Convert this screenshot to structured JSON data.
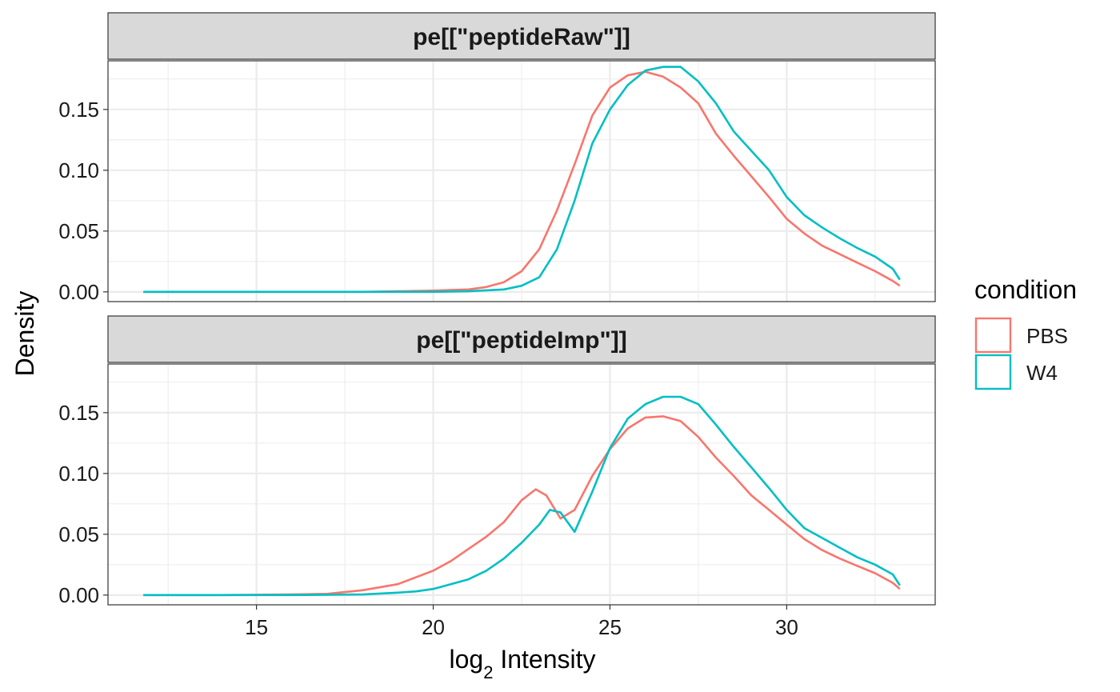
{
  "chart_data": {
    "type": "line",
    "subtype": "density",
    "xlabel_main": "log",
    "xlabel_sub": "2",
    "xlabel_rest": " Intensity",
    "ylabel": "Density",
    "xlim": [
      10.8,
      34.2
    ],
    "x_ticks": [
      15,
      20,
      25,
      30
    ],
    "x_tick_labels": [
      "15",
      "20",
      "25",
      "30"
    ],
    "legend": {
      "title": "condition",
      "position": "right",
      "entries": [
        {
          "name": "PBS",
          "color": "#F8766D"
        },
        {
          "name": "W4",
          "color": "#00BFC4"
        }
      ]
    },
    "grid": true,
    "panels": [
      {
        "title": "pe[[\"peptideRaw\"]]",
        "ylim": [
          -0.008,
          0.19
        ],
        "y_ticks": [
          0.0,
          0.05,
          0.1,
          0.15
        ],
        "y_tick_labels": [
          "0.00",
          "0.05",
          "0.10",
          "0.15"
        ],
        "series": [
          {
            "name": "PBS",
            "color": "#F8766D",
            "x": [
              11.8,
              14,
              16,
              18,
              19,
              20,
              21,
              21.5,
              22,
              22.5,
              23,
              23.5,
              24,
              24.5,
              25,
              25.5,
              26,
              26.5,
              27,
              27.5,
              28,
              28.5,
              29,
              29.5,
              30,
              30.5,
              31,
              31.5,
              32,
              32.5,
              33,
              33.2
            ],
            "y": [
              0,
              0,
              0,
              0,
              0.0005,
              0.001,
              0.002,
              0.004,
              0.008,
              0.017,
              0.035,
              0.067,
              0.105,
              0.145,
              0.168,
              0.178,
              0.181,
              0.177,
              0.168,
              0.155,
              0.13,
              0.112,
              0.095,
              0.078,
              0.06,
              0.048,
              0.038,
              0.031,
              0.024,
              0.017,
              0.009,
              0.005
            ]
          },
          {
            "name": "W4",
            "color": "#00BFC4",
            "x": [
              11.8,
              14,
              16,
              18,
              20,
              21,
              22,
              22.5,
              23,
              23.5,
              24,
              24.5,
              25,
              25.5,
              26,
              26.5,
              27,
              27.5,
              28,
              28.5,
              29,
              29.5,
              30,
              30.5,
              31,
              31.5,
              32,
              32.5,
              33,
              33.2
            ],
            "y": [
              0,
              0,
              0,
              0,
              0,
              0.0005,
              0.002,
              0.005,
              0.012,
              0.035,
              0.075,
              0.122,
              0.15,
              0.17,
              0.182,
              0.185,
              0.185,
              0.173,
              0.155,
              0.132,
              0.116,
              0.1,
              0.078,
              0.063,
              0.053,
              0.044,
              0.036,
              0.029,
              0.019,
              0.01
            ]
          }
        ]
      },
      {
        "title": "pe[[\"peptideImp\"]]",
        "ylim": [
          -0.008,
          0.19
        ],
        "y_ticks": [
          0.0,
          0.05,
          0.1,
          0.15
        ],
        "y_tick_labels": [
          "0.00",
          "0.05",
          "0.10",
          "0.15"
        ],
        "series": [
          {
            "name": "PBS",
            "color": "#F8766D",
            "x": [
              11.8,
              14,
              16,
              17,
              18,
              19,
              20,
              20.5,
              21,
              21.5,
              22,
              22.5,
              22.9,
              23.2,
              23.6,
              24,
              24.5,
              25,
              25.5,
              26,
              26.5,
              27,
              27.5,
              28,
              28.5,
              29,
              29.5,
              30,
              30.5,
              31,
              31.5,
              32,
              32.5,
              33,
              33.2
            ],
            "y": [
              0,
              0,
              0.0005,
              0.001,
              0.004,
              0.009,
              0.02,
              0.028,
              0.038,
              0.048,
              0.06,
              0.078,
              0.087,
              0.082,
              0.063,
              0.07,
              0.098,
              0.12,
              0.137,
              0.146,
              0.147,
              0.143,
              0.13,
              0.113,
              0.098,
              0.082,
              0.07,
              0.058,
              0.046,
              0.037,
              0.03,
              0.024,
              0.018,
              0.01,
              0.005
            ]
          },
          {
            "name": "W4",
            "color": "#00BFC4",
            "x": [
              11.8,
              14,
              16,
              18,
              19,
              19.5,
              20,
              20.5,
              21,
              21.5,
              22,
              22.5,
              23,
              23.3,
              23.6,
              24,
              24.5,
              25,
              25.5,
              26,
              26.5,
              27,
              27.5,
              28,
              28.5,
              29,
              29.5,
              30,
              30.5,
              31,
              31.5,
              32,
              32.5,
              33,
              33.2
            ],
            "y": [
              0,
              0,
              0,
              0.0005,
              0.002,
              0.003,
              0.005,
              0.009,
              0.013,
              0.02,
              0.03,
              0.043,
              0.058,
              0.07,
              0.068,
              0.052,
              0.085,
              0.121,
              0.145,
              0.157,
              0.163,
              0.163,
              0.157,
              0.14,
              0.122,
              0.105,
              0.088,
              0.07,
              0.055,
              0.047,
              0.039,
              0.031,
              0.025,
              0.017,
              0.008
            ]
          }
        ]
      }
    ]
  }
}
